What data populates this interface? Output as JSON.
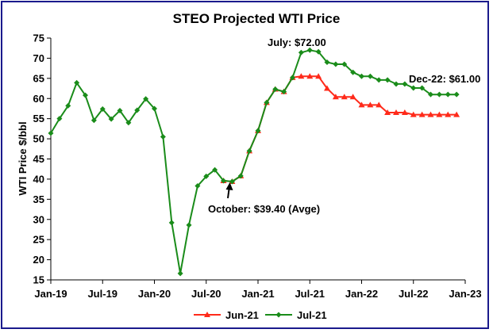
{
  "chart_data": {
    "type": "line",
    "title": "STEO Projected WTI Price",
    "ylabel": "WTI Price $/bbl",
    "xlabel": "",
    "ylim": [
      15,
      75
    ],
    "yticks": [
      15,
      20,
      25,
      30,
      35,
      40,
      45,
      50,
      55,
      60,
      65,
      70,
      75
    ],
    "x_start": "2019-01",
    "x_end": "2023-01",
    "xtick_labels": [
      "Jan-19",
      "Jul-19",
      "Jan-20",
      "Jul-20",
      "Jan-21",
      "Jul-21",
      "Jan-22",
      "Jul-22",
      "Jan-23"
    ],
    "grid": false,
    "legend_position": "bottom",
    "series": [
      {
        "name": "Jun-21",
        "color": "#ff2a1a",
        "marker": "triangle",
        "x": [
          "2020-09",
          "2020-10",
          "2020-11",
          "2020-12",
          "2021-01",
          "2021-02",
          "2021-03",
          "2021-04",
          "2021-05",
          "2021-06",
          "2021-07",
          "2021-08",
          "2021-09",
          "2021-10",
          "2021-11",
          "2021-12",
          "2022-01",
          "2022-02",
          "2022-03",
          "2022-04",
          "2022-05",
          "2022-06",
          "2022-07",
          "2022-08",
          "2022-09",
          "2022-10",
          "2022-11",
          "2022-12"
        ],
        "values": [
          39.6,
          39.4,
          40.8,
          47.0,
          52.0,
          59.0,
          62.3,
          61.7,
          65.2,
          65.5,
          65.5,
          65.5,
          62.5,
          60.4,
          60.4,
          60.4,
          58.4,
          58.4,
          58.4,
          56.5,
          56.5,
          56.5,
          56.0,
          56.0,
          56.0,
          56.0,
          56.0,
          56.0
        ]
      },
      {
        "name": "Jul-21",
        "color": "#1a8c1a",
        "marker": "diamond",
        "x": [
          "2019-01",
          "2019-02",
          "2019-03",
          "2019-04",
          "2019-05",
          "2019-06",
          "2019-07",
          "2019-08",
          "2019-09",
          "2019-10",
          "2019-11",
          "2019-12",
          "2020-01",
          "2020-02",
          "2020-03",
          "2020-04",
          "2020-05",
          "2020-06",
          "2020-07",
          "2020-08",
          "2020-09",
          "2020-10",
          "2020-11",
          "2020-12",
          "2021-01",
          "2021-02",
          "2021-03",
          "2021-04",
          "2021-05",
          "2021-06",
          "2021-07",
          "2021-08",
          "2021-09",
          "2021-10",
          "2021-11",
          "2021-12",
          "2022-01",
          "2022-02",
          "2022-03",
          "2022-04",
          "2022-05",
          "2022-06",
          "2022-07",
          "2022-08",
          "2022-09",
          "2022-10",
          "2022-11",
          "2022-12"
        ],
        "values": [
          51.4,
          55.0,
          58.2,
          63.9,
          60.8,
          54.6,
          57.4,
          54.9,
          57.0,
          54.0,
          57.1,
          59.9,
          57.5,
          50.5,
          29.2,
          16.6,
          28.6,
          38.3,
          40.7,
          42.3,
          39.6,
          39.4,
          40.8,
          47.0,
          52.0,
          59.0,
          62.3,
          61.7,
          65.2,
          71.4,
          72.0,
          71.6,
          69.0,
          68.5,
          68.5,
          66.5,
          65.5,
          65.5,
          64.6,
          64.6,
          63.6,
          63.6,
          62.6,
          62.6,
          61.0,
          61.0,
          61.0,
          61.0
        ]
      }
    ],
    "annotations": [
      {
        "text": "July: $72.00"
      },
      {
        "text": "Dec-22: $61.00"
      },
      {
        "text": "October: $39.40 (Avge)"
      }
    ]
  }
}
